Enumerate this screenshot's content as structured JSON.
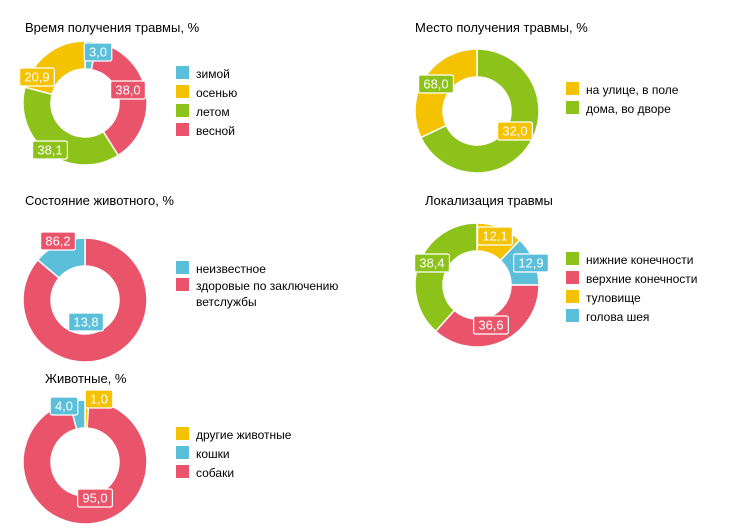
{
  "colors": {
    "cyan": "#5bbfda",
    "yellow": "#f5c200",
    "green": "#8cc21a",
    "red": "#e9546b"
  },
  "chart_data": [
    {
      "type": "pie",
      "donut": true,
      "title": "Время получения травмы, %",
      "categories": [
        "зимой",
        "осенью",
        "летом",
        "весной"
      ],
      "values": [
        3.0,
        20.9,
        38.1,
        38.0
      ],
      "labels": [
        "3,0",
        "20,9",
        "38,1",
        "38,0"
      ],
      "colors": [
        "#5bbfda",
        "#f5c200",
        "#8cc21a",
        "#e9546b"
      ],
      "slice_order": [
        0,
        3,
        2,
        1
      ],
      "legend_position": "right"
    },
    {
      "type": "pie",
      "donut": true,
      "title": "Место получения травмы, %",
      "categories": [
        "на улице, в поле",
        "дома, во дворе"
      ],
      "values": [
        32.0,
        68.0
      ],
      "labels": [
        "32,0",
        "68,0"
      ],
      "colors": [
        "#f5c200",
        "#8cc21a"
      ],
      "slice_order": [
        1,
        0
      ],
      "legend_position": "right"
    },
    {
      "type": "pie",
      "donut": true,
      "title": "Состояние животного, %",
      "categories": [
        "неизвестное",
        "здоровые по заключению ветслужбы"
      ],
      "legend_lines": [
        [
          "неизвестное"
        ],
        [
          "здоровые по заключению",
          "ветслужбы"
        ]
      ],
      "values": [
        13.8,
        86.2
      ],
      "labels": [
        "13,8",
        "86,2"
      ],
      "colors": [
        "#5bbfda",
        "#e9546b"
      ],
      "slice_order": [
        1,
        0
      ],
      "legend_position": "right"
    },
    {
      "type": "pie",
      "donut": true,
      "title": "Локализация травмы",
      "categories": [
        "нижние конечности",
        "верхние конечности",
        "туловище",
        "голова шея"
      ],
      "values": [
        38.4,
        36.6,
        12.1,
        12.9
      ],
      "labels": [
        "38,4",
        "36,6",
        "12,1",
        "12,9"
      ],
      "colors": [
        "#8cc21a",
        "#e9546b",
        "#f5c200",
        "#5bbfda"
      ],
      "slice_order": [
        2,
        3,
        1,
        0
      ],
      "legend_position": "right"
    },
    {
      "type": "pie",
      "donut": true,
      "title": "Животные, %",
      "categories": [
        "другие животные",
        "кошки",
        "собаки"
      ],
      "values": [
        1.0,
        4.0,
        95.0
      ],
      "labels": [
        "1,0",
        "4,0",
        "95,0"
      ],
      "colors": [
        "#f5c200",
        "#5bbfda",
        "#e9546b"
      ],
      "slice_order": [
        0,
        2,
        1
      ],
      "legend_position": "right"
    }
  ]
}
